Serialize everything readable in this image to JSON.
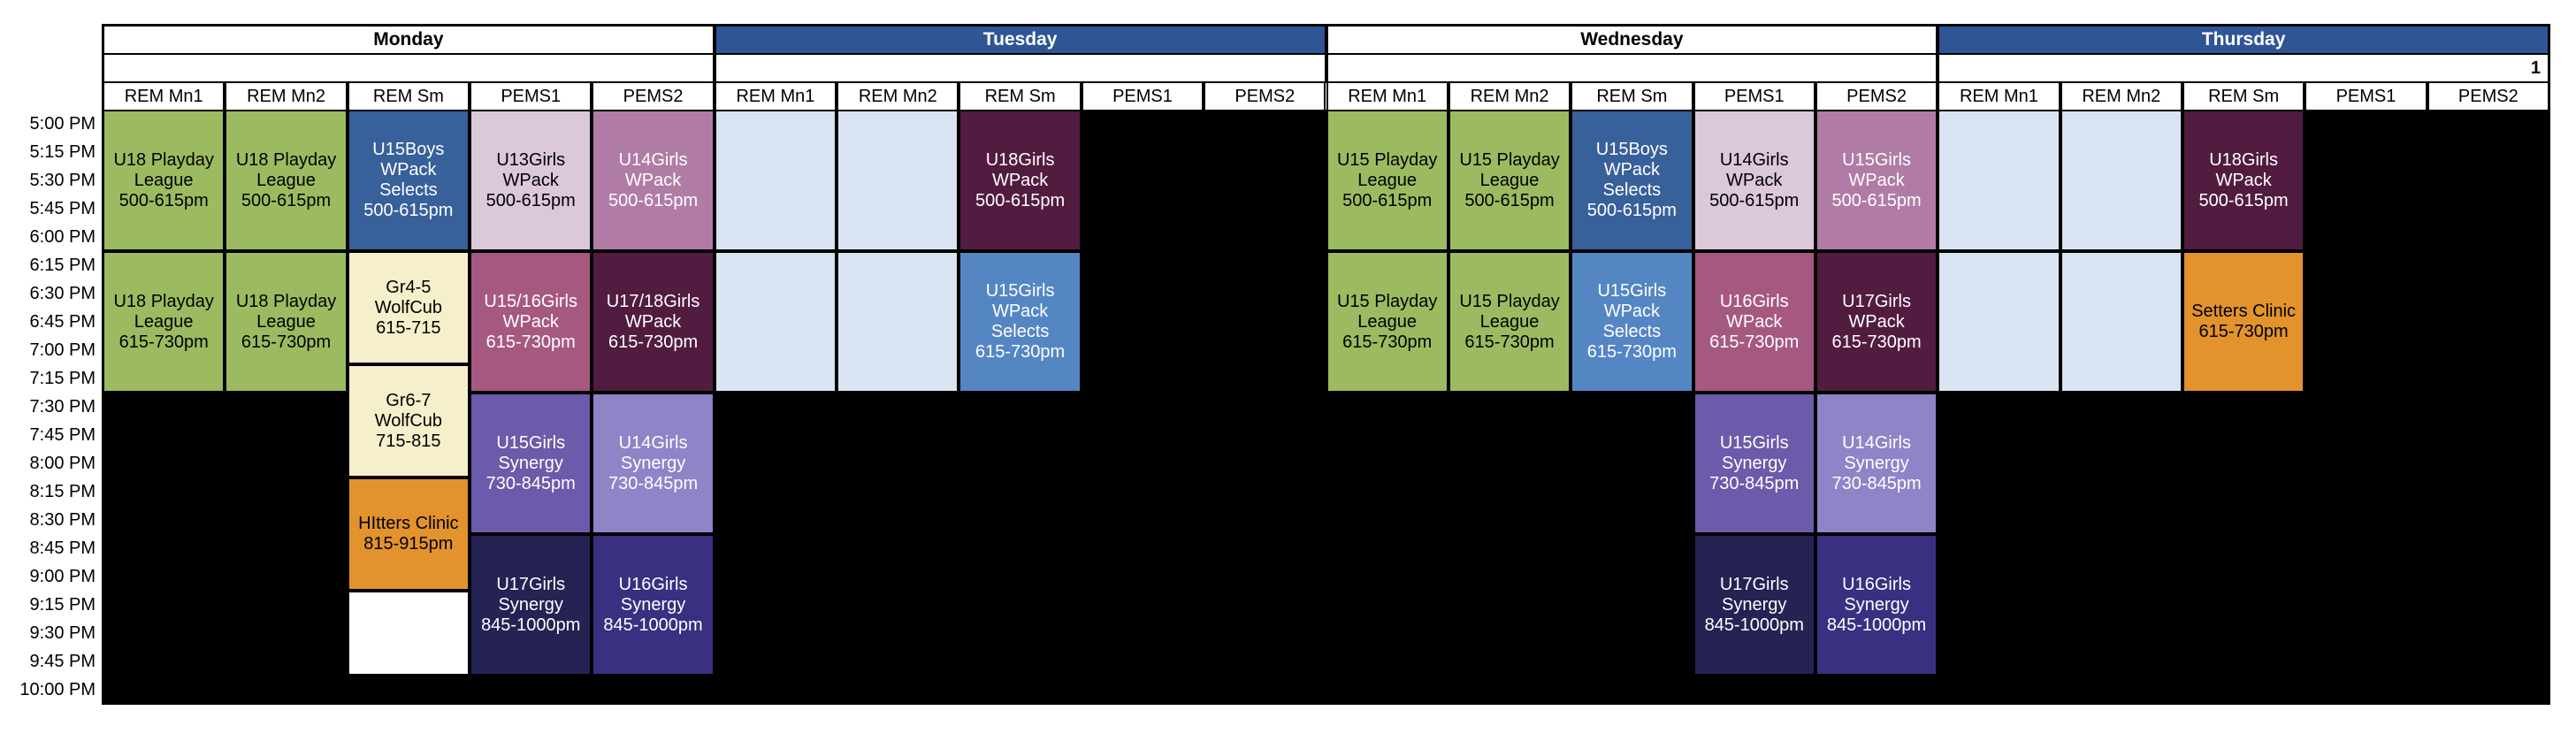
{
  "note": "1",
  "palette": {
    "header_blue": "#2F5596",
    "green": {
      "bg": "#9CBB60",
      "fg": "#000000"
    },
    "cream": {
      "bg": "#F6EFCB",
      "fg": "#000000"
    },
    "orange": {
      "bg": "#E2932D",
      "fg": "#000000"
    },
    "darkblue": {
      "bg": "#38609A",
      "fg": "#FFFFFF"
    },
    "medblue": {
      "bg": "#5586C4",
      "fg": "#FFFFFF"
    },
    "lightblue": {
      "bg": "#D9E3F1",
      "fg": "#000000"
    },
    "lightpink": {
      "bg": "#DBC8D9",
      "fg": "#000000"
    },
    "mauve": {
      "bg": "#B07CA6",
      "fg": "#FFFFFF"
    },
    "magenta": {
      "bg": "#A65980",
      "fg": "#FFFFFF"
    },
    "maroon": {
      "bg": "#521C41",
      "fg": "#FFFFFF"
    },
    "purple": {
      "bg": "#6B5BAA",
      "fg": "#FFFFFF"
    },
    "lightpurple": {
      "bg": "#8F84C8",
      "fg": "#FFFFFF"
    },
    "darknavy": {
      "bg": "#252254",
      "fg": "#FFFFFF"
    },
    "indigo": {
      "bg": "#393081",
      "fg": "#FFFFFF"
    },
    "white": {
      "bg": "#FFFFFF",
      "fg": "#000000"
    },
    "body_black": "#000000"
  },
  "time_labels": [
    "5:00 PM",
    "5:15 PM",
    "5:30 PM",
    "5:45 PM",
    "6:00 PM",
    "6:15 PM",
    "6:30 PM",
    "6:45 PM",
    "7:00 PM",
    "7:15 PM",
    "7:30 PM",
    "7:45 PM",
    "8:00 PM",
    "8:15 PM",
    "8:30 PM",
    "8:45 PM",
    "9:00 PM",
    "9:15 PM",
    "9:30 PM",
    "9:45 PM",
    "10:00 PM"
  ],
  "rooms": [
    "REM Mn1",
    "REM Mn2",
    "REM Sm",
    "PEMS1",
    "PEMS2"
  ],
  "days": [
    {
      "name": "Monday",
      "header_style": "light",
      "events": [
        {
          "room": 0,
          "label": "U18 Playday League",
          "time": "500-615pm",
          "start": "5:00 PM",
          "end": "6:15 PM",
          "style": "green"
        },
        {
          "room": 0,
          "label": "U18 Playday League",
          "time": "615-730pm",
          "start": "6:15 PM",
          "end": "7:30 PM",
          "style": "green"
        },
        {
          "room": 1,
          "label": "U18 Playday League",
          "time": "500-615pm",
          "start": "5:00 PM",
          "end": "6:15 PM",
          "style": "green"
        },
        {
          "room": 1,
          "label": "U18 Playday League",
          "time": "615-730pm",
          "start": "6:15 PM",
          "end": "7:30 PM",
          "style": "green"
        },
        {
          "room": 2,
          "label": "U15Boys WPack Selects",
          "time": "500-615pm",
          "start": "5:00 PM",
          "end": "6:15 PM",
          "style": "darkblue"
        },
        {
          "room": 2,
          "label": "Gr4-5 WolfCub",
          "time": "615-715",
          "start": "6:15 PM",
          "end": "7:15 PM",
          "style": "cream"
        },
        {
          "room": 2,
          "label": "Gr6-7 WolfCub",
          "time": "715-815",
          "start": "7:15 PM",
          "end": "8:15 PM",
          "style": "cream"
        },
        {
          "room": 2,
          "label": "HItters Clinic",
          "time": "815-915pm",
          "start": "8:15 PM",
          "end": "9:15 PM",
          "style": "orange"
        },
        {
          "room": 2,
          "label": "",
          "time": "",
          "start": "9:15 PM",
          "end": "10:00 PM",
          "style": "white"
        },
        {
          "room": 3,
          "label": "U13Girls WPack",
          "time": "500-615pm",
          "start": "5:00 PM",
          "end": "6:15 PM",
          "style": "lightpink"
        },
        {
          "room": 3,
          "label": "U15/16Girls WPack",
          "time": "615-730pm",
          "start": "6:15 PM",
          "end": "7:30 PM",
          "style": "magenta"
        },
        {
          "room": 3,
          "label": "U15Girls Synergy",
          "time": "730-845pm",
          "start": "7:30 PM",
          "end": "8:45 PM",
          "style": "purple"
        },
        {
          "room": 3,
          "label": "U17Girls Synergy",
          "time": "845-1000pm",
          "start": "8:45 PM",
          "end": "10:00 PM",
          "style": "darknavy"
        },
        {
          "room": 4,
          "label": "U14Girls WPack",
          "time": "500-615pm",
          "start": "5:00 PM",
          "end": "6:15 PM",
          "style": "mauve"
        },
        {
          "room": 4,
          "label": "U17/18Girls WPack",
          "time": "615-730pm",
          "start": "6:15 PM",
          "end": "7:30 PM",
          "style": "maroon"
        },
        {
          "room": 4,
          "label": "U14Girls Synergy",
          "time": "730-845pm",
          "start": "7:30 PM",
          "end": "8:45 PM",
          "style": "lightpurple"
        },
        {
          "room": 4,
          "label": "U16Girls Synergy",
          "time": "845-1000pm",
          "start": "8:45 PM",
          "end": "10:00 PM",
          "style": "indigo"
        }
      ]
    },
    {
      "name": "Tuesday",
      "header_style": "dark",
      "events": [
        {
          "room": 0,
          "label": "",
          "time": "",
          "start": "5:00 PM",
          "end": "6:15 PM",
          "style": "lightblue"
        },
        {
          "room": 0,
          "label": "",
          "time": "",
          "start": "6:15 PM",
          "end": "7:30 PM",
          "style": "lightblue"
        },
        {
          "room": 1,
          "label": "",
          "time": "",
          "start": "5:00 PM",
          "end": "6:15 PM",
          "style": "lightblue"
        },
        {
          "room": 1,
          "label": "",
          "time": "",
          "start": "6:15 PM",
          "end": "7:30 PM",
          "style": "lightblue"
        },
        {
          "room": 2,
          "label": "U18Girls WPack",
          "time": "500-615pm",
          "start": "5:00 PM",
          "end": "6:15 PM",
          "style": "maroon"
        },
        {
          "room": 2,
          "label": "U15Girls WPack Selects",
          "time": "615-730pm",
          "start": "6:15 PM",
          "end": "7:30 PM",
          "style": "medblue"
        }
      ]
    },
    {
      "name": "Wednesday",
      "header_style": "light",
      "events": [
        {
          "room": 0,
          "label": "U15 Playday League",
          "time": "500-615pm",
          "start": "5:00 PM",
          "end": "6:15 PM",
          "style": "green"
        },
        {
          "room": 0,
          "label": "U15 Playday League",
          "time": "615-730pm",
          "start": "6:15 PM",
          "end": "7:30 PM",
          "style": "green"
        },
        {
          "room": 1,
          "label": "U15 Playday League",
          "time": "500-615pm",
          "start": "5:00 PM",
          "end": "6:15 PM",
          "style": "green"
        },
        {
          "room": 1,
          "label": "U15 Playday League",
          "time": "615-730pm",
          "start": "6:15 PM",
          "end": "7:30 PM",
          "style": "green"
        },
        {
          "room": 2,
          "label": "U15Boys WPack Selects",
          "time": "500-615pm",
          "start": "5:00 PM",
          "end": "6:15 PM",
          "style": "darkblue"
        },
        {
          "room": 2,
          "label": "U15Girls WPack Selects",
          "time": "615-730pm",
          "start": "6:15 PM",
          "end": "7:30 PM",
          "style": "medblue"
        },
        {
          "room": 3,
          "label": "U14Girls WPack",
          "time": "500-615pm",
          "start": "5:00 PM",
          "end": "6:15 PM",
          "style": "lightpink"
        },
        {
          "room": 3,
          "label": "U16Girls WPack",
          "time": "615-730pm",
          "start": "6:15 PM",
          "end": "7:30 PM",
          "style": "magenta"
        },
        {
          "room": 3,
          "label": "U15Girls Synergy",
          "time": "730-845pm",
          "start": "7:30 PM",
          "end": "8:45 PM",
          "style": "purple"
        },
        {
          "room": 3,
          "label": "U17Girls Synergy",
          "time": "845-1000pm",
          "start": "8:45 PM",
          "end": "10:00 PM",
          "style": "darknavy"
        },
        {
          "room": 4,
          "label": "U15Girls WPack",
          "time": "500-615pm",
          "start": "5:00 PM",
          "end": "6:15 PM",
          "style": "mauve"
        },
        {
          "room": 4,
          "label": "U17Girls WPack",
          "time": "615-730pm",
          "start": "6:15 PM",
          "end": "7:30 PM",
          "style": "maroon"
        },
        {
          "room": 4,
          "label": "U14Girls Synergy",
          "time": "730-845pm",
          "start": "7:30 PM",
          "end": "8:45 PM",
          "style": "lightpurple"
        },
        {
          "room": 4,
          "label": "U16Girls Synergy",
          "time": "845-1000pm",
          "start": "8:45 PM",
          "end": "10:00 PM",
          "style": "indigo"
        }
      ]
    },
    {
      "name": "Thursday",
      "header_style": "dark",
      "events": [
        {
          "room": 0,
          "label": "",
          "time": "",
          "start": "5:00 PM",
          "end": "6:15 PM",
          "style": "lightblue"
        },
        {
          "room": 0,
          "label": "",
          "time": "",
          "start": "6:15 PM",
          "end": "7:30 PM",
          "style": "lightblue"
        },
        {
          "room": 1,
          "label": "",
          "time": "",
          "start": "5:00 PM",
          "end": "6:15 PM",
          "style": "lightblue"
        },
        {
          "room": 1,
          "label": "",
          "time": "",
          "start": "6:15 PM",
          "end": "7:30 PM",
          "style": "lightblue"
        },
        {
          "room": 2,
          "label": "U18Girls WPack",
          "time": "500-615pm",
          "start": "5:00 PM",
          "end": "6:15 PM",
          "style": "maroon"
        },
        {
          "room": 2,
          "label": "Setters Clinic",
          "time": "615-730pm",
          "start": "6:15 PM",
          "end": "7:30 PM",
          "style": "orange"
        }
      ]
    }
  ]
}
